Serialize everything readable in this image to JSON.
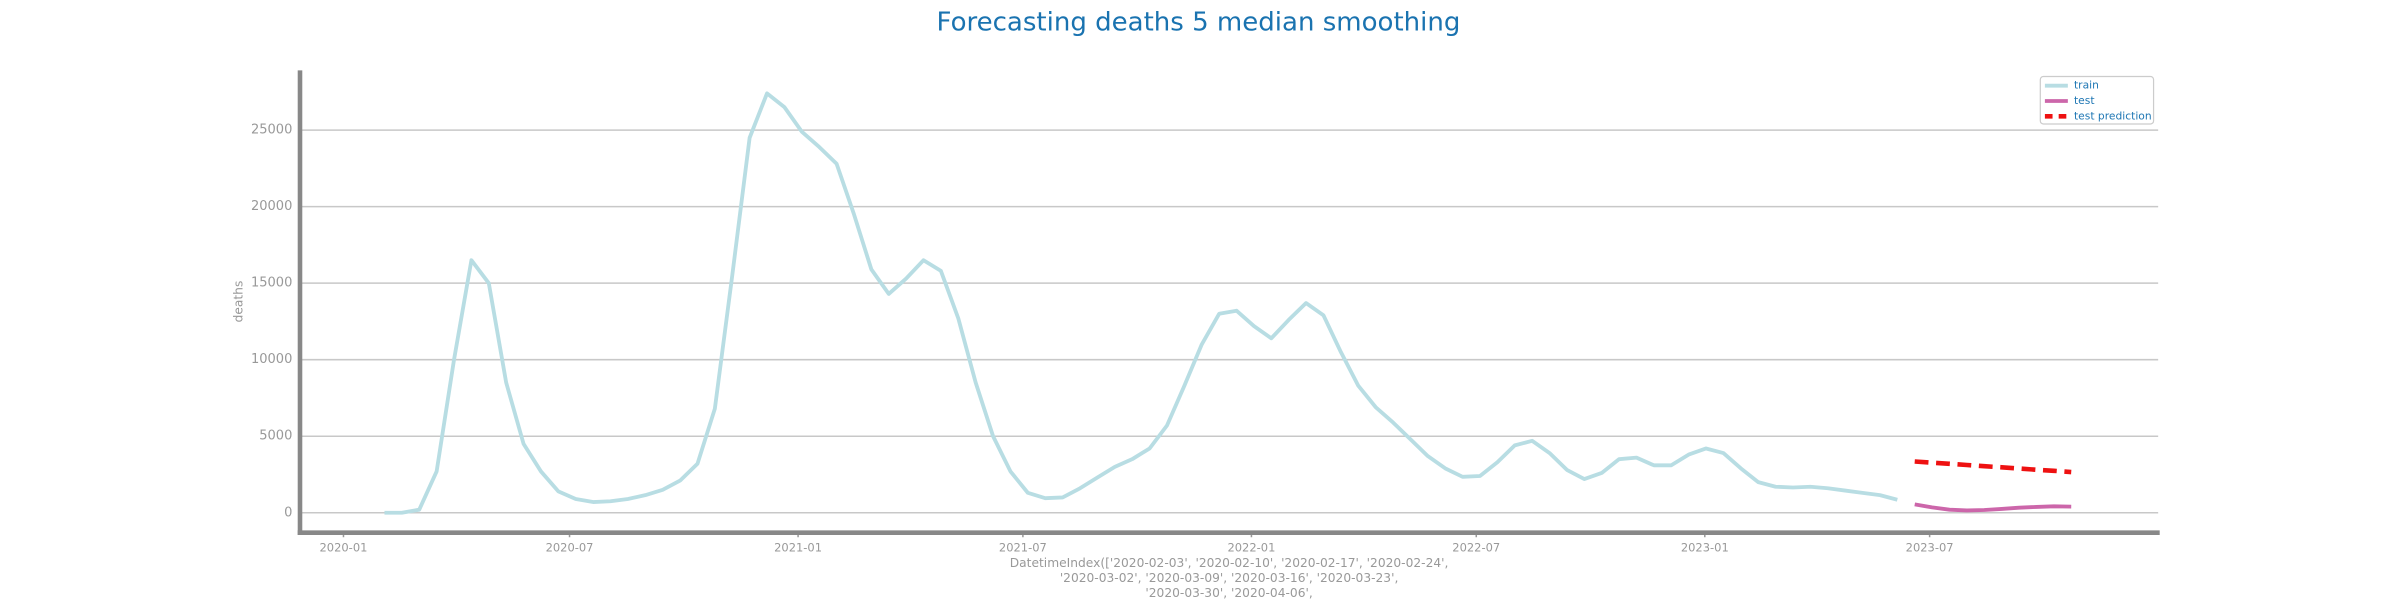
{
  "chart_data": {
    "type": "line",
    "title": "Forecasting deaths 5 median smoothing",
    "ylabel": "deaths",
    "xlabel": [
      "DatetimeIndex(['2020-02-03', '2020-02-10', '2020-02-17', '2020-02-24',",
      "'2020-03-02', '2020-03-09', '2020-03-16', '2020-03-23',",
      "'2020-03-30', '2020-04-06',"
    ],
    "xlim": [
      "2019-11-27",
      "2024-01-01"
    ],
    "xticks": [
      "2020-01",
      "2020-07",
      "2021-01",
      "2021-07",
      "2022-01",
      "2022-07",
      "2023-01",
      "2023-07"
    ],
    "ylim": [
      -1300,
      28900
    ],
    "yticks": [
      0,
      5000,
      10000,
      15000,
      20000,
      25000
    ],
    "grid": true,
    "legend": "upper right",
    "series": [
      {
        "name": "train",
        "color": "#b8dde3",
        "linestyle": "solid",
        "x": [
          "2020-02-03",
          "2020-02-17",
          "2020-03-02",
          "2020-03-16",
          "2020-03-30",
          "2020-04-13",
          "2020-04-27",
          "2020-05-11",
          "2020-05-25",
          "2020-06-08",
          "2020-06-22",
          "2020-07-06",
          "2020-07-20",
          "2020-08-03",
          "2020-08-17",
          "2020-08-31",
          "2020-09-14",
          "2020-09-28",
          "2020-10-12",
          "2020-10-26",
          "2020-11-09",
          "2020-11-23",
          "2020-12-07",
          "2020-12-21",
          "2021-01-04",
          "2021-01-18",
          "2021-02-01",
          "2021-02-15",
          "2021-03-01",
          "2021-03-15",
          "2021-03-29",
          "2021-04-12",
          "2021-04-26",
          "2021-05-10",
          "2021-05-24",
          "2021-06-07",
          "2021-06-21",
          "2021-07-05",
          "2021-07-19",
          "2021-08-02",
          "2021-08-16",
          "2021-08-30",
          "2021-09-13",
          "2021-09-27",
          "2021-10-11",
          "2021-10-25",
          "2021-11-08",
          "2021-11-22",
          "2021-12-06",
          "2021-12-20",
          "2022-01-03",
          "2022-01-17",
          "2022-01-31",
          "2022-02-14",
          "2022-02-28",
          "2022-03-14",
          "2022-03-28",
          "2022-04-11",
          "2022-04-25",
          "2022-05-09",
          "2022-05-23",
          "2022-06-06",
          "2022-06-20",
          "2022-07-04",
          "2022-07-18",
          "2022-08-01",
          "2022-08-15",
          "2022-08-29",
          "2022-09-12",
          "2022-09-26",
          "2022-10-10",
          "2022-10-24",
          "2022-11-07",
          "2022-11-21",
          "2022-12-05",
          "2022-12-19",
          "2023-01-02",
          "2023-01-16",
          "2023-01-30",
          "2023-02-13",
          "2023-02-27",
          "2023-03-13",
          "2023-03-27",
          "2023-04-10",
          "2023-04-24",
          "2023-05-08",
          "2023-05-22",
          "2023-06-05"
        ],
        "values": [
          0,
          0,
          200,
          2700,
          10000,
          16500,
          15000,
          8500,
          4500,
          2700,
          1400,
          900,
          700,
          750,
          900,
          1150,
          1500,
          2100,
          3200,
          6800,
          15500,
          24500,
          27400,
          26500,
          24900,
          23900,
          22800,
          19500,
          15900,
          14300,
          15300,
          16500,
          15800,
          12700,
          8500,
          5000,
          2700,
          1300,
          950,
          1000,
          1600,
          2300,
          3000,
          3500,
          4200,
          5700,
          8300,
          11000,
          13000,
          13200,
          12200,
          11400,
          12600,
          13700,
          12900,
          10500,
          8300,
          6900,
          5900,
          4800,
          3700,
          2900,
          2350,
          2400,
          3300,
          4400,
          4700,
          3900,
          2800,
          2200,
          2600,
          3500,
          3600,
          3100,
          3100,
          3800,
          4200,
          3900,
          2900,
          2000,
          1700,
          1650,
          1700,
          1600,
          1450,
          1300,
          1150,
          850
        ]
      },
      {
        "name": "test",
        "color": "#cc66aa",
        "linestyle": "solid",
        "x": [
          "2023-06-19",
          "2023-07-03",
          "2023-07-17",
          "2023-07-31",
          "2023-08-14",
          "2023-08-28",
          "2023-09-11",
          "2023-09-25",
          "2023-10-09",
          "2023-10-23"
        ],
        "values": [
          550,
          350,
          200,
          150,
          180,
          250,
          330,
          380,
          420,
          400
        ]
      },
      {
        "name": "test prediction",
        "color": "#ee1111",
        "linestyle": "dashed",
        "x": [
          "2023-06-19",
          "2023-07-03",
          "2023-07-17",
          "2023-07-31",
          "2023-08-14",
          "2023-08-28",
          "2023-09-11",
          "2023-09-25",
          "2023-10-09",
          "2023-10-23"
        ],
        "values": [
          3350,
          3270,
          3200,
          3120,
          3040,
          2970,
          2890,
          2810,
          2740,
          2660
        ]
      }
    ]
  }
}
